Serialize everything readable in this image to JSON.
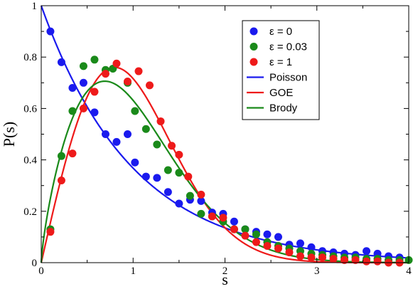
{
  "chart_data": {
    "type": "scatter",
    "xlabel": "s",
    "ylabel": "P(s)",
    "xlim": [
      0,
      4
    ],
    "ylim": [
      0,
      1
    ],
    "x_ticks": [
      "0",
      "1",
      "2",
      "3",
      "4"
    ],
    "y_ticks": [
      "0",
      "0.2",
      "0.4",
      "0.6",
      "0.8",
      "1"
    ],
    "legend_position": "top-right",
    "grid": false,
    "scatter_series": [
      {
        "name": "ε = 0",
        "color": "#1a1aee",
        "points": [
          [
            0.1,
            0.9
          ],
          [
            0.22,
            0.78
          ],
          [
            0.34,
            0.68
          ],
          [
            0.46,
            0.7
          ],
          [
            0.58,
            0.585
          ],
          [
            0.7,
            0.5
          ],
          [
            0.82,
            0.47
          ],
          [
            0.94,
            0.5
          ],
          [
            1.02,
            0.39
          ],
          [
            1.14,
            0.335
          ],
          [
            1.26,
            0.33
          ],
          [
            1.38,
            0.275
          ],
          [
            1.5,
            0.23
          ],
          [
            1.62,
            0.245
          ],
          [
            1.74,
            0.24
          ],
          [
            1.86,
            0.195
          ],
          [
            1.98,
            0.19
          ],
          [
            2.1,
            0.16
          ],
          [
            2.22,
            0.13
          ],
          [
            2.34,
            0.12
          ],
          [
            2.46,
            0.11
          ],
          [
            2.58,
            0.1
          ],
          [
            2.7,
            0.07
          ],
          [
            2.82,
            0.075
          ],
          [
            2.94,
            0.06
          ],
          [
            3.06,
            0.045
          ],
          [
            3.18,
            0.04
          ],
          [
            3.3,
            0.035
          ],
          [
            3.42,
            0.03
          ],
          [
            3.54,
            0.045
          ],
          [
            3.66,
            0.035
          ],
          [
            3.78,
            0.025
          ],
          [
            3.9,
            0.02
          ]
        ]
      },
      {
        "name": "ε = 0.03",
        "color": "#1a8a1a",
        "points": [
          [
            0.1,
            0.13
          ],
          [
            0.22,
            0.415
          ],
          [
            0.34,
            0.59
          ],
          [
            0.46,
            0.765
          ],
          [
            0.58,
            0.79
          ],
          [
            0.7,
            0.75
          ],
          [
            0.78,
            0.755
          ],
          [
            0.94,
            0.7
          ],
          [
            1.02,
            0.59
          ],
          [
            1.14,
            0.52
          ],
          [
            1.26,
            0.46
          ],
          [
            1.38,
            0.36
          ],
          [
            1.5,
            0.35
          ],
          [
            1.62,
            0.26
          ],
          [
            1.74,
            0.19
          ],
          [
            1.86,
            0.18
          ],
          [
            1.98,
            0.16
          ],
          [
            2.1,
            0.13
          ],
          [
            2.22,
            0.13
          ],
          [
            2.34,
            0.11
          ],
          [
            2.46,
            0.08
          ],
          [
            2.58,
            0.065
          ],
          [
            2.7,
            0.055
          ],
          [
            2.82,
            0.045
          ],
          [
            2.94,
            0.035
          ],
          [
            3.06,
            0.03
          ],
          [
            3.18,
            0.025
          ],
          [
            3.3,
            0.02
          ],
          [
            3.42,
            0.02
          ],
          [
            3.54,
            0.015
          ],
          [
            3.66,
            0.015
          ],
          [
            3.78,
            0.01
          ],
          [
            3.9,
            0.01
          ],
          [
            4.0,
            0.01
          ]
        ]
      },
      {
        "name": "ε = 1",
        "color": "#ee1a1a",
        "points": [
          [
            0.1,
            0.12
          ],
          [
            0.22,
            0.32
          ],
          [
            0.34,
            0.425
          ],
          [
            0.46,
            0.6
          ],
          [
            0.58,
            0.665
          ],
          [
            0.7,
            0.735
          ],
          [
            0.82,
            0.775
          ],
          [
            0.94,
            0.705
          ],
          [
            1.06,
            0.745
          ],
          [
            1.18,
            0.69
          ],
          [
            1.3,
            0.55
          ],
          [
            1.42,
            0.455
          ],
          [
            1.5,
            0.42
          ],
          [
            1.6,
            0.335
          ],
          [
            1.74,
            0.265
          ],
          [
            1.86,
            0.18
          ],
          [
            1.98,
            0.175
          ],
          [
            2.1,
            0.13
          ],
          [
            2.22,
            0.105
          ],
          [
            2.34,
            0.08
          ],
          [
            2.46,
            0.065
          ],
          [
            2.58,
            0.055
          ],
          [
            2.7,
            0.04
          ],
          [
            2.82,
            0.025
          ],
          [
            2.94,
            0.02
          ],
          [
            3.06,
            0.02
          ],
          [
            3.18,
            0.015
          ],
          [
            3.3,
            0.01
          ],
          [
            3.42,
            0.01
          ],
          [
            3.54,
            0.005
          ],
          [
            3.66,
            0.005
          ],
          [
            3.78,
            0.0
          ],
          [
            3.9,
            0.0
          ]
        ]
      }
    ],
    "curve_series": [
      {
        "name": "Poisson",
        "color": "#1a1aee",
        "formula": "exp(-s)"
      },
      {
        "name": "GOE",
        "color": "#ee1a1a",
        "formula": "(pi/2) s exp(-pi s^2/4)"
      },
      {
        "name": "Brody",
        "color": "#1a8a1a",
        "formula": "brody",
        "beta": 0.75
      }
    ]
  }
}
